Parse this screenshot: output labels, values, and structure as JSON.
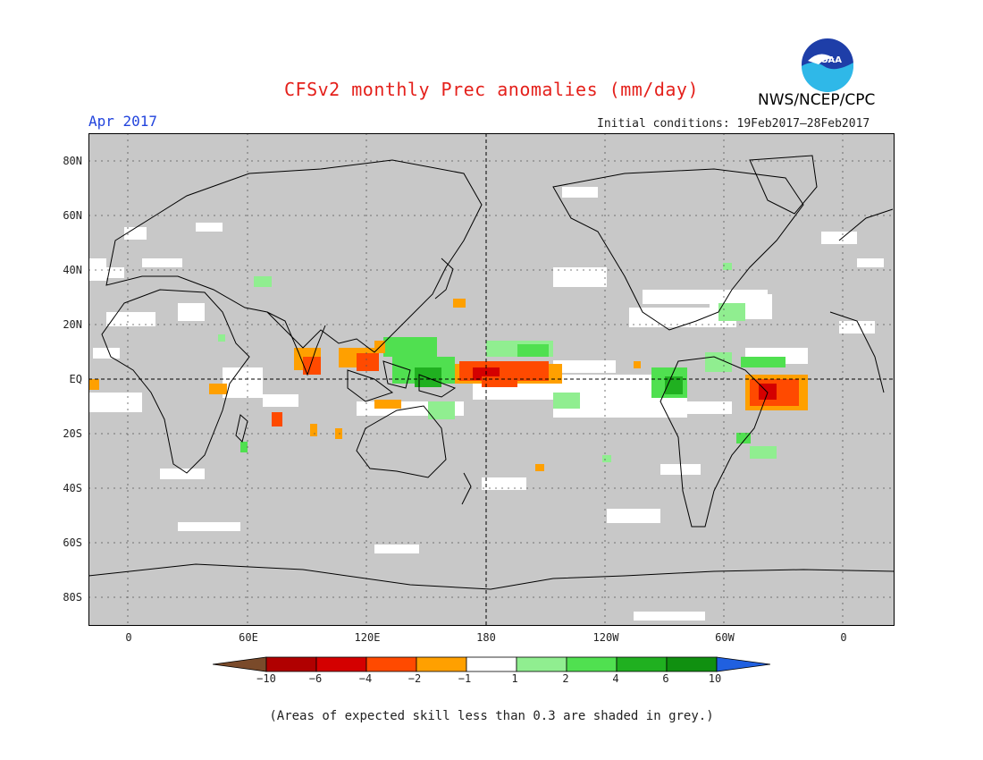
{
  "header": {
    "title": "CFSv2 monthly Prec anomalies (mm/day)",
    "month": "Apr 2017",
    "initial_conditions": "Initial conditions: 19Feb2017–28Feb2017",
    "organization": "NWS/NCEP/CPC",
    "logo_text": "NOAA"
  },
  "axes": {
    "lat_labels": [
      "80N",
      "60N",
      "40N",
      "20N",
      "EQ",
      "20S",
      "40S",
      "60S",
      "80S"
    ],
    "lon_labels": [
      "0",
      "60E",
      "120E",
      "180",
      "120W",
      "60W",
      "0"
    ]
  },
  "colorbar": {
    "labels": [
      "−10",
      "−6",
      "−4",
      "−2",
      "−1",
      "1",
      "2",
      "4",
      "6",
      "10"
    ],
    "colors": [
      "#7a4a2a",
      "#b00000",
      "#d40000",
      "#ff4a00",
      "#ffa000",
      "#ffffff",
      "#90ee90",
      "#50e050",
      "#20b020",
      "#109010",
      "#2060e0"
    ]
  },
  "footnote": "(Areas of expected skill less than 0.3 are shaded in grey.)"
}
